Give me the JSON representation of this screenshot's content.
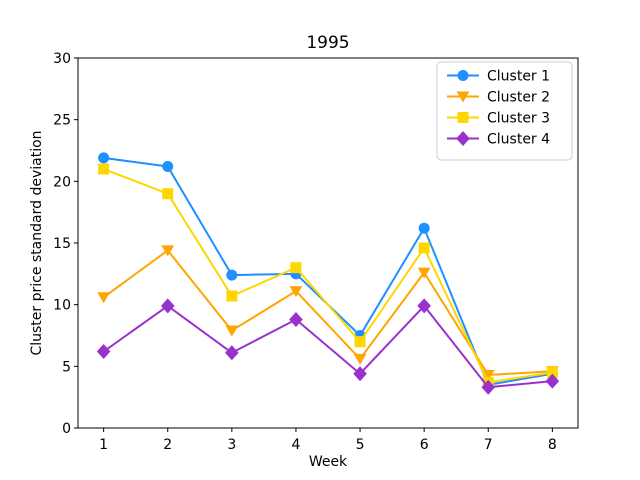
{
  "figure": {
    "background": "#ffffff",
    "frame_color": "#000000"
  },
  "chart_data": {
    "type": "line",
    "title": "1995",
    "xlabel": "Week",
    "ylabel": "Cluster price standard deviation",
    "x": [
      1,
      2,
      3,
      4,
      5,
      6,
      7,
      8
    ],
    "xticks": [
      1,
      2,
      3,
      4,
      5,
      6,
      7,
      8
    ],
    "yticks": [
      0,
      5,
      10,
      15,
      20,
      25,
      30
    ],
    "xlim": [
      0.6,
      8.4
    ],
    "ylim": [
      0,
      30
    ],
    "grid": false,
    "legend_position": "upper right",
    "series": [
      {
        "name": "Cluster 1",
        "color": "#1e90ff",
        "marker": "circle",
        "values": [
          21.9,
          21.2,
          12.4,
          12.5,
          7.5,
          16.2,
          3.5,
          4.4
        ]
      },
      {
        "name": "Cluster 2",
        "color": "#ffa500",
        "marker": "triangle-down",
        "values": [
          10.6,
          14.4,
          7.9,
          11.1,
          5.6,
          12.6,
          4.3,
          4.6
        ]
      },
      {
        "name": "Cluster 3",
        "color": "#ffd700",
        "marker": "square",
        "values": [
          21.0,
          19.0,
          10.7,
          13.0,
          7.0,
          14.6,
          3.7,
          4.5
        ]
      },
      {
        "name": "Cluster 4",
        "color": "#9932cc",
        "marker": "diamond",
        "values": [
          6.2,
          9.9,
          6.1,
          8.8,
          4.4,
          9.9,
          3.3,
          3.8
        ]
      }
    ]
  }
}
